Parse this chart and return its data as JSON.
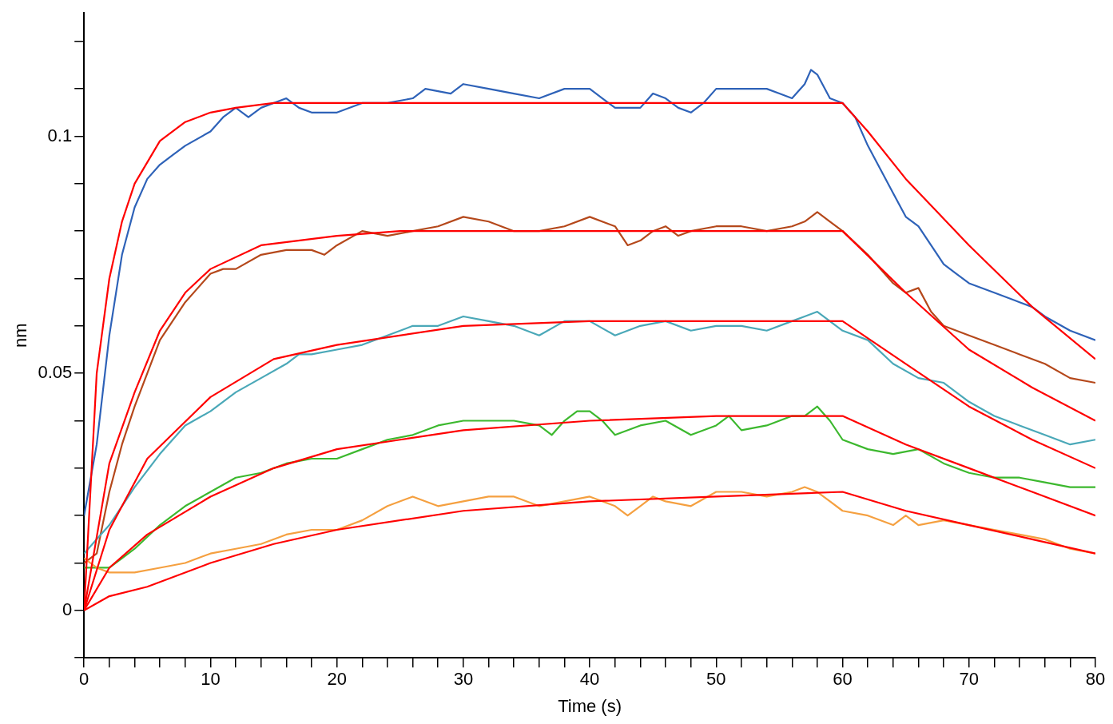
{
  "chart_data": {
    "type": "line",
    "xlabel": "Time (s)",
    "ylabel": "nm",
    "xlim": [
      0,
      80
    ],
    "ylim": [
      -0.01,
      0.126
    ],
    "xticks": [
      0,
      {
        "value": 2,
        "label": null
      },
      {
        "value": 4,
        "label": null
      },
      {
        "value": 6,
        "label": null
      },
      {
        "value": 8,
        "label": null
      },
      10,
      {
        "value": 12,
        "label": null
      },
      {
        "value": 14,
        "label": null
      },
      {
        "value": 16,
        "label": null
      },
      {
        "value": 18,
        "label": null
      },
      20,
      {
        "value": 22,
        "label": null
      },
      {
        "value": 24,
        "label": null
      },
      {
        "value": 26,
        "label": null
      },
      {
        "value": 28,
        "label": null
      },
      30,
      {
        "value": 32,
        "label": null
      },
      {
        "value": 34,
        "label": null
      },
      {
        "value": 36,
        "label": null
      },
      {
        "value": 38,
        "label": null
      },
      40,
      {
        "value": 42,
        "label": null
      },
      {
        "value": 44,
        "label": null
      },
      {
        "value": 46,
        "label": null
      },
      {
        "value": 48,
        "label": null
      },
      50,
      {
        "value": 52,
        "label": null
      },
      {
        "value": 54,
        "label": null
      },
      {
        "value": 56,
        "label": null
      },
      {
        "value": 58,
        "label": null
      },
      60,
      {
        "value": 62,
        "label": null
      },
      {
        "value": 64,
        "label": null
      },
      {
        "value": 66,
        "label": null
      },
      {
        "value": 68,
        "label": null
      },
      70,
      {
        "value": 72,
        "label": null
      },
      {
        "value": 74,
        "label": null
      },
      {
        "value": 76,
        "label": null
      },
      {
        "value": 78,
        "label": null
      },
      80
    ],
    "yticks": [
      {
        "value": -0.01,
        "label": null
      },
      0,
      {
        "value": 0.01,
        "label": null
      },
      {
        "value": 0.02,
        "label": null
      },
      {
        "value": 0.03,
        "label": null
      },
      {
        "value": 0.04,
        "label": null
      },
      0.05,
      {
        "value": 0.06,
        "label": null
      },
      {
        "value": 0.07,
        "label": null
      },
      {
        "value": 0.08,
        "label": null
      },
      {
        "value": 0.09,
        "label": null
      },
      0.1,
      {
        "value": 0.11,
        "label": null
      },
      {
        "value": 0.12,
        "label": null
      }
    ],
    "grid": false,
    "legend": false,
    "marker": "none",
    "line_style": "solid",
    "series": [
      {
        "color": "#2e62b8",
        "x": [
          0,
          1,
          2,
          3,
          4,
          5,
          6,
          7,
          8,
          10,
          11,
          12,
          13,
          14,
          16,
          17,
          18,
          20,
          22,
          24,
          26,
          27,
          29,
          30,
          32,
          34,
          36,
          38,
          40,
          41,
          42,
          44,
          45,
          46,
          47,
          48,
          49,
          50,
          52,
          54,
          55,
          56,
          57,
          57.5,
          58,
          59,
          60,
          61,
          62,
          63,
          64,
          65,
          66,
          67,
          68,
          69,
          70,
          72,
          74,
          75,
          76,
          78,
          80
        ],
        "values": [
          0.02,
          0.035,
          0.058,
          0.075,
          0.085,
          0.091,
          0.094,
          0.096,
          0.098,
          0.101,
          0.104,
          0.106,
          0.104,
          0.106,
          0.108,
          0.106,
          0.105,
          0.105,
          0.107,
          0.107,
          0.108,
          0.11,
          0.109,
          0.111,
          0.11,
          0.109,
          0.108,
          0.11,
          0.11,
          0.108,
          0.106,
          0.106,
          0.109,
          0.108,
          0.106,
          0.105,
          0.107,
          0.11,
          0.11,
          0.11,
          0.109,
          0.108,
          0.111,
          0.114,
          0.113,
          0.108,
          0.107,
          0.104,
          0.098,
          0.093,
          0.088,
          0.083,
          0.081,
          0.077,
          0.073,
          0.071,
          0.069,
          0.067,
          0.065,
          0.064,
          0.062,
          0.059,
          0.057
        ]
      },
      {
        "color": "#b5481b",
        "x": [
          0,
          1,
          2,
          3,
          4,
          5,
          6,
          7,
          8,
          9,
          10,
          11,
          12,
          14,
          16,
          18,
          19,
          20,
          22,
          24,
          26,
          28,
          30,
          32,
          34,
          36,
          38,
          40,
          42,
          43,
          44,
          45,
          46,
          47,
          48,
          50,
          52,
          54,
          56,
          57,
          58,
          59,
          60,
          62,
          64,
          65,
          66,
          67,
          68,
          70,
          72,
          74,
          76,
          78,
          80
        ],
        "values": [
          0.01,
          0.012,
          0.025,
          0.035,
          0.043,
          0.05,
          0.057,
          0.061,
          0.065,
          0.068,
          0.071,
          0.072,
          0.072,
          0.075,
          0.076,
          0.076,
          0.075,
          0.077,
          0.08,
          0.079,
          0.08,
          0.081,
          0.083,
          0.082,
          0.08,
          0.08,
          0.081,
          0.083,
          0.081,
          0.077,
          0.078,
          0.08,
          0.081,
          0.079,
          0.08,
          0.081,
          0.081,
          0.08,
          0.081,
          0.082,
          0.084,
          0.082,
          0.08,
          0.075,
          0.069,
          0.067,
          0.068,
          0.063,
          0.06,
          0.058,
          0.056,
          0.054,
          0.052,
          0.049,
          0.048
        ]
      },
      {
        "color": "#4aa8b8",
        "x": [
          0,
          1,
          2,
          4,
          6,
          8,
          10,
          12,
          14,
          16,
          17,
          18,
          20,
          22,
          24,
          26,
          28,
          30,
          32,
          34,
          36,
          38,
          40,
          42,
          44,
          46,
          48,
          50,
          52,
          54,
          56,
          57,
          58,
          60,
          62,
          64,
          66,
          68,
          70,
          72,
          74,
          76,
          78,
          80
        ],
        "values": [
          0.012,
          0.015,
          0.018,
          0.026,
          0.033,
          0.039,
          0.042,
          0.046,
          0.049,
          0.052,
          0.054,
          0.054,
          0.055,
          0.056,
          0.058,
          0.06,
          0.06,
          0.062,
          0.061,
          0.06,
          0.058,
          0.061,
          0.061,
          0.058,
          0.06,
          0.061,
          0.059,
          0.06,
          0.06,
          0.059,
          0.061,
          0.062,
          0.063,
          0.059,
          0.057,
          0.052,
          0.049,
          0.048,
          0.044,
          0.041,
          0.039,
          0.037,
          0.035,
          0.036
        ]
      },
      {
        "color": "#3cb82e",
        "x": [
          0,
          1,
          2,
          3,
          4,
          6,
          8,
          10,
          12,
          14,
          16,
          18,
          20,
          22,
          24,
          26,
          28,
          30,
          32,
          34,
          36,
          37,
          38,
          39,
          40,
          41,
          42,
          44,
          46,
          48,
          50,
          51,
          52,
          54,
          56,
          57,
          58,
          59,
          60,
          62,
          64,
          66,
          68,
          70,
          72,
          74,
          76,
          78,
          80
        ],
        "values": [
          0.009,
          0.009,
          0.009,
          0.011,
          0.013,
          0.018,
          0.022,
          0.025,
          0.028,
          0.029,
          0.031,
          0.032,
          0.032,
          0.034,
          0.036,
          0.037,
          0.039,
          0.04,
          0.04,
          0.04,
          0.039,
          0.037,
          0.04,
          0.042,
          0.042,
          0.04,
          0.037,
          0.039,
          0.04,
          0.037,
          0.039,
          0.041,
          0.038,
          0.039,
          0.041,
          0.041,
          0.043,
          0.04,
          0.036,
          0.034,
          0.033,
          0.034,
          0.031,
          0.029,
          0.028,
          0.028,
          0.027,
          0.026,
          0.026
        ]
      },
      {
        "color": "#f5a040",
        "x": [
          0,
          1,
          2,
          4,
          6,
          8,
          10,
          12,
          14,
          16,
          18,
          20,
          22,
          24,
          26,
          28,
          30,
          32,
          34,
          36,
          38,
          40,
          42,
          43,
          44,
          45,
          46,
          48,
          50,
          52,
          54,
          56,
          57,
          58,
          59,
          60,
          62,
          64,
          65,
          66,
          68,
          70,
          72,
          74,
          76,
          78,
          80
        ],
        "values": [
          0.011,
          0.009,
          0.008,
          0.008,
          0.009,
          0.01,
          0.012,
          0.013,
          0.014,
          0.016,
          0.017,
          0.017,
          0.019,
          0.022,
          0.024,
          0.022,
          0.023,
          0.024,
          0.024,
          0.022,
          0.023,
          0.024,
          0.022,
          0.02,
          0.022,
          0.024,
          0.023,
          0.022,
          0.025,
          0.025,
          0.024,
          0.025,
          0.026,
          0.025,
          0.023,
          0.021,
          0.02,
          0.018,
          0.02,
          0.018,
          0.019,
          0.018,
          0.017,
          0.016,
          0.015,
          0.013,
          0.012
        ]
      },
      {
        "color": "#ff0000",
        "x": [
          0,
          1,
          2,
          3,
          4,
          6,
          8,
          10,
          12,
          15,
          20,
          30,
          40,
          50,
          60,
          62,
          65,
          70,
          75,
          80
        ],
        "values": [
          0,
          0.05,
          0.07,
          0.082,
          0.09,
          0.099,
          0.103,
          0.105,
          0.106,
          0.107,
          0.107,
          0.107,
          0.107,
          0.107,
          0.107,
          0.101,
          0.091,
          0.077,
          0.064,
          0.053
        ]
      },
      {
        "color": "#ff0000",
        "x": [
          0,
          2,
          4,
          6,
          8,
          10,
          14,
          20,
          25,
          30,
          40,
          50,
          60,
          65,
          70,
          75,
          80
        ],
        "values": [
          0,
          0.031,
          0.046,
          0.059,
          0.067,
          0.072,
          0.077,
          0.079,
          0.08,
          0.08,
          0.08,
          0.08,
          0.08,
          0.067,
          0.055,
          0.047,
          0.04
        ]
      },
      {
        "color": "#ff0000",
        "x": [
          0,
          2,
          5,
          10,
          15,
          20,
          30,
          40,
          50,
          60,
          65,
          70,
          75,
          80
        ],
        "values": [
          0,
          0.017,
          0.032,
          0.045,
          0.053,
          0.056,
          0.06,
          0.061,
          0.061,
          0.061,
          0.052,
          0.043,
          0.036,
          0.03
        ]
      },
      {
        "color": "#ff0000",
        "x": [
          0,
          2,
          5,
          10,
          15,
          20,
          25,
          30,
          40,
          50,
          60,
          65,
          70,
          75,
          80
        ],
        "values": [
          0,
          0.009,
          0.016,
          0.024,
          0.03,
          0.034,
          0.036,
          0.038,
          0.04,
          0.041,
          0.041,
          0.035,
          0.03,
          0.025,
          0.02
        ]
      },
      {
        "color": "#ff0000",
        "x": [
          0,
          2,
          5,
          10,
          15,
          20,
          30,
          40,
          50,
          60,
          65,
          70,
          75,
          80
        ],
        "values": [
          0,
          0.003,
          0.005,
          0.01,
          0.014,
          0.017,
          0.021,
          0.023,
          0.024,
          0.025,
          0.021,
          0.018,
          0.015,
          0.012
        ]
      }
    ]
  }
}
